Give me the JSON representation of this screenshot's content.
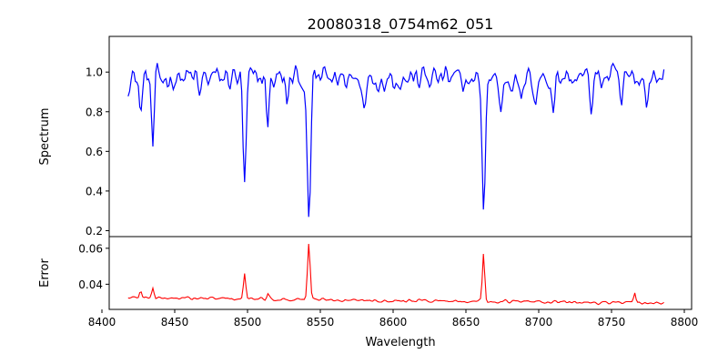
{
  "chart_data": [
    {
      "type": "line",
      "title": "20080318_0754m62_051",
      "xlabel": "",
      "ylabel": "Spectrum",
      "xlim": [
        8405,
        8805
      ],
      "ylim": [
        0.17,
        1.18
      ],
      "xticks": [
        8400,
        8450,
        8500,
        8550,
        8600,
        8650,
        8700,
        8750,
        8800
      ],
      "yticks": [
        0.2,
        0.4,
        0.6,
        0.8,
        1.0
      ],
      "ytick_labels": [
        "0.2",
        "0.4",
        "0.6",
        "0.8",
        "1.0"
      ],
      "x_start": 8418,
      "x_end": 8786,
      "x_step": 1,
      "baseline": 0.97,
      "noise": 0.06,
      "color": "#0000ff",
      "lines": [
        {
          "center": 8498.0,
          "depth": 0.56,
          "width": 1.1
        },
        {
          "center": 8542.1,
          "depth": 0.76,
          "width": 1.2
        },
        {
          "center": 8662.1,
          "depth": 0.7,
          "width": 1.1
        },
        {
          "center": 8435.0,
          "depth": 0.38,
          "width": 0.9
        },
        {
          "center": 8426.5,
          "depth": 0.2,
          "width": 0.9
        },
        {
          "center": 8467.0,
          "depth": 0.1,
          "width": 1.0
        },
        {
          "center": 8514.0,
          "depth": 0.22,
          "width": 1.0
        },
        {
          "center": 8527.0,
          "depth": 0.14,
          "width": 1.0
        },
        {
          "center": 8580.0,
          "depth": 0.12,
          "width": 0.9
        },
        {
          "center": 8648.0,
          "depth": 0.12,
          "width": 1.0
        },
        {
          "center": 8674.0,
          "depth": 0.18,
          "width": 1.0
        },
        {
          "center": 8688.0,
          "depth": 0.17,
          "width": 1.0
        },
        {
          "center": 8698.0,
          "depth": 0.11,
          "width": 0.9
        },
        {
          "center": 8710.0,
          "depth": 0.14,
          "width": 1.0
        },
        {
          "center": 8736.0,
          "depth": 0.14,
          "width": 1.0
        },
        {
          "center": 8757.0,
          "depth": 0.15,
          "width": 1.0
        },
        {
          "center": 8774.0,
          "depth": 0.11,
          "width": 1.0
        }
      ]
    },
    {
      "type": "line",
      "title": "",
      "xlabel": "Wavelength",
      "ylabel": "Error",
      "xlim": [
        8405,
        8805
      ],
      "ylim": [
        0.026,
        0.0665
      ],
      "xticks": [
        8400,
        8450,
        8500,
        8550,
        8600,
        8650,
        8700,
        8750,
        8800
      ],
      "xtick_labels": [
        "8400",
        "8450",
        "8500",
        "8550",
        "8600",
        "8650",
        "8700",
        "8750",
        "8800"
      ],
      "yticks": [
        0.04,
        0.06
      ],
      "ytick_labels": [
        "0.04",
        "0.06"
      ],
      "x_start": 8418,
      "x_end": 8786,
      "x_step": 1,
      "baseline": 0.0325,
      "trend_end": 0.0295,
      "noise": 0.0012,
      "color": "#ff0000",
      "peaks": [
        {
          "center": 8498.0,
          "height": 0.0135,
          "width": 0.8
        },
        {
          "center": 8542.1,
          "height": 0.0315,
          "width": 0.9
        },
        {
          "center": 8662.1,
          "height": 0.0265,
          "width": 0.8
        },
        {
          "center": 8435.0,
          "height": 0.006,
          "width": 0.8
        },
        {
          "center": 8426.5,
          "height": 0.004,
          "width": 0.8
        },
        {
          "center": 8766.0,
          "height": 0.005,
          "width": 0.7
        },
        {
          "center": 8514.0,
          "height": 0.003,
          "width": 0.8
        }
      ]
    }
  ]
}
